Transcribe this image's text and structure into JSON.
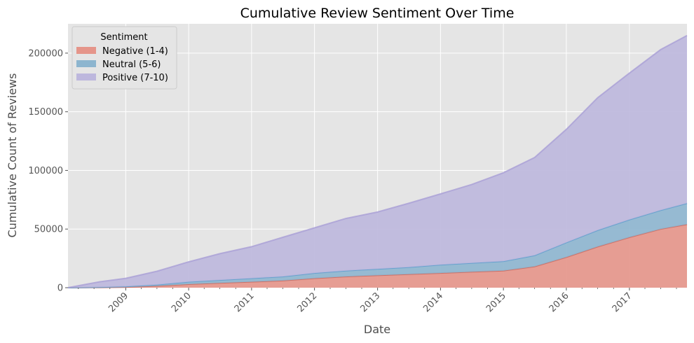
{
  "chart_data": {
    "type": "area",
    "stacked": true,
    "title": "Cumulative Review Sentiment Over Time",
    "xlabel": "Date",
    "ylabel": "Cumulative Count of Reviews",
    "xlim": [
      "2008-02-01",
      "2017-12-01"
    ],
    "ylim": [
      0,
      225000
    ],
    "x_ticks": [
      "2009",
      "2010",
      "2011",
      "2012",
      "2013",
      "2014",
      "2015",
      "2016",
      "2017"
    ],
    "y_ticks": [
      "0",
      "50000",
      "100000",
      "150000",
      "200000"
    ],
    "grid": true,
    "legend": {
      "title": "Sentiment",
      "placement": "top-left"
    },
    "x": [
      "2008-02",
      "2008-08",
      "2009-01",
      "2009-07",
      "2010-01",
      "2010-07",
      "2011-01",
      "2011-07",
      "2012-01",
      "2012-07",
      "2013-01",
      "2013-07",
      "2014-01",
      "2014-07",
      "2015-01",
      "2015-07",
      "2016-01",
      "2016-07",
      "2017-01",
      "2017-07",
      "2017-12"
    ],
    "series": [
      {
        "name": "Negative (1-4)",
        "color": "#e5958a",
        "values": [
          0,
          200,
          500,
          1500,
          3000,
          4000,
          5000,
          6000,
          8000,
          9500,
          10500,
          11500,
          12500,
          13500,
          14500,
          18000,
          26000,
          35000,
          43000,
          50000,
          54000
        ]
      },
      {
        "name": "Neutral (5-6)",
        "color": "#8db5cf",
        "values": [
          0,
          200,
          500,
          1000,
          2000,
          2500,
          3000,
          3500,
          4500,
          5000,
          5500,
          6000,
          7000,
          7500,
          8000,
          9500,
          12500,
          14000,
          15000,
          16000,
          18000
        ]
      },
      {
        "name": "Positive (7-10)",
        "color": "#bdb7dd",
        "values": [
          0,
          4600,
          7000,
          11500,
          17000,
          22500,
          27000,
          33500,
          38500,
          44500,
          48500,
          54500,
          60500,
          67000,
          75500,
          83500,
          96500,
          113000,
          125000,
          137000,
          143000
        ]
      }
    ]
  }
}
